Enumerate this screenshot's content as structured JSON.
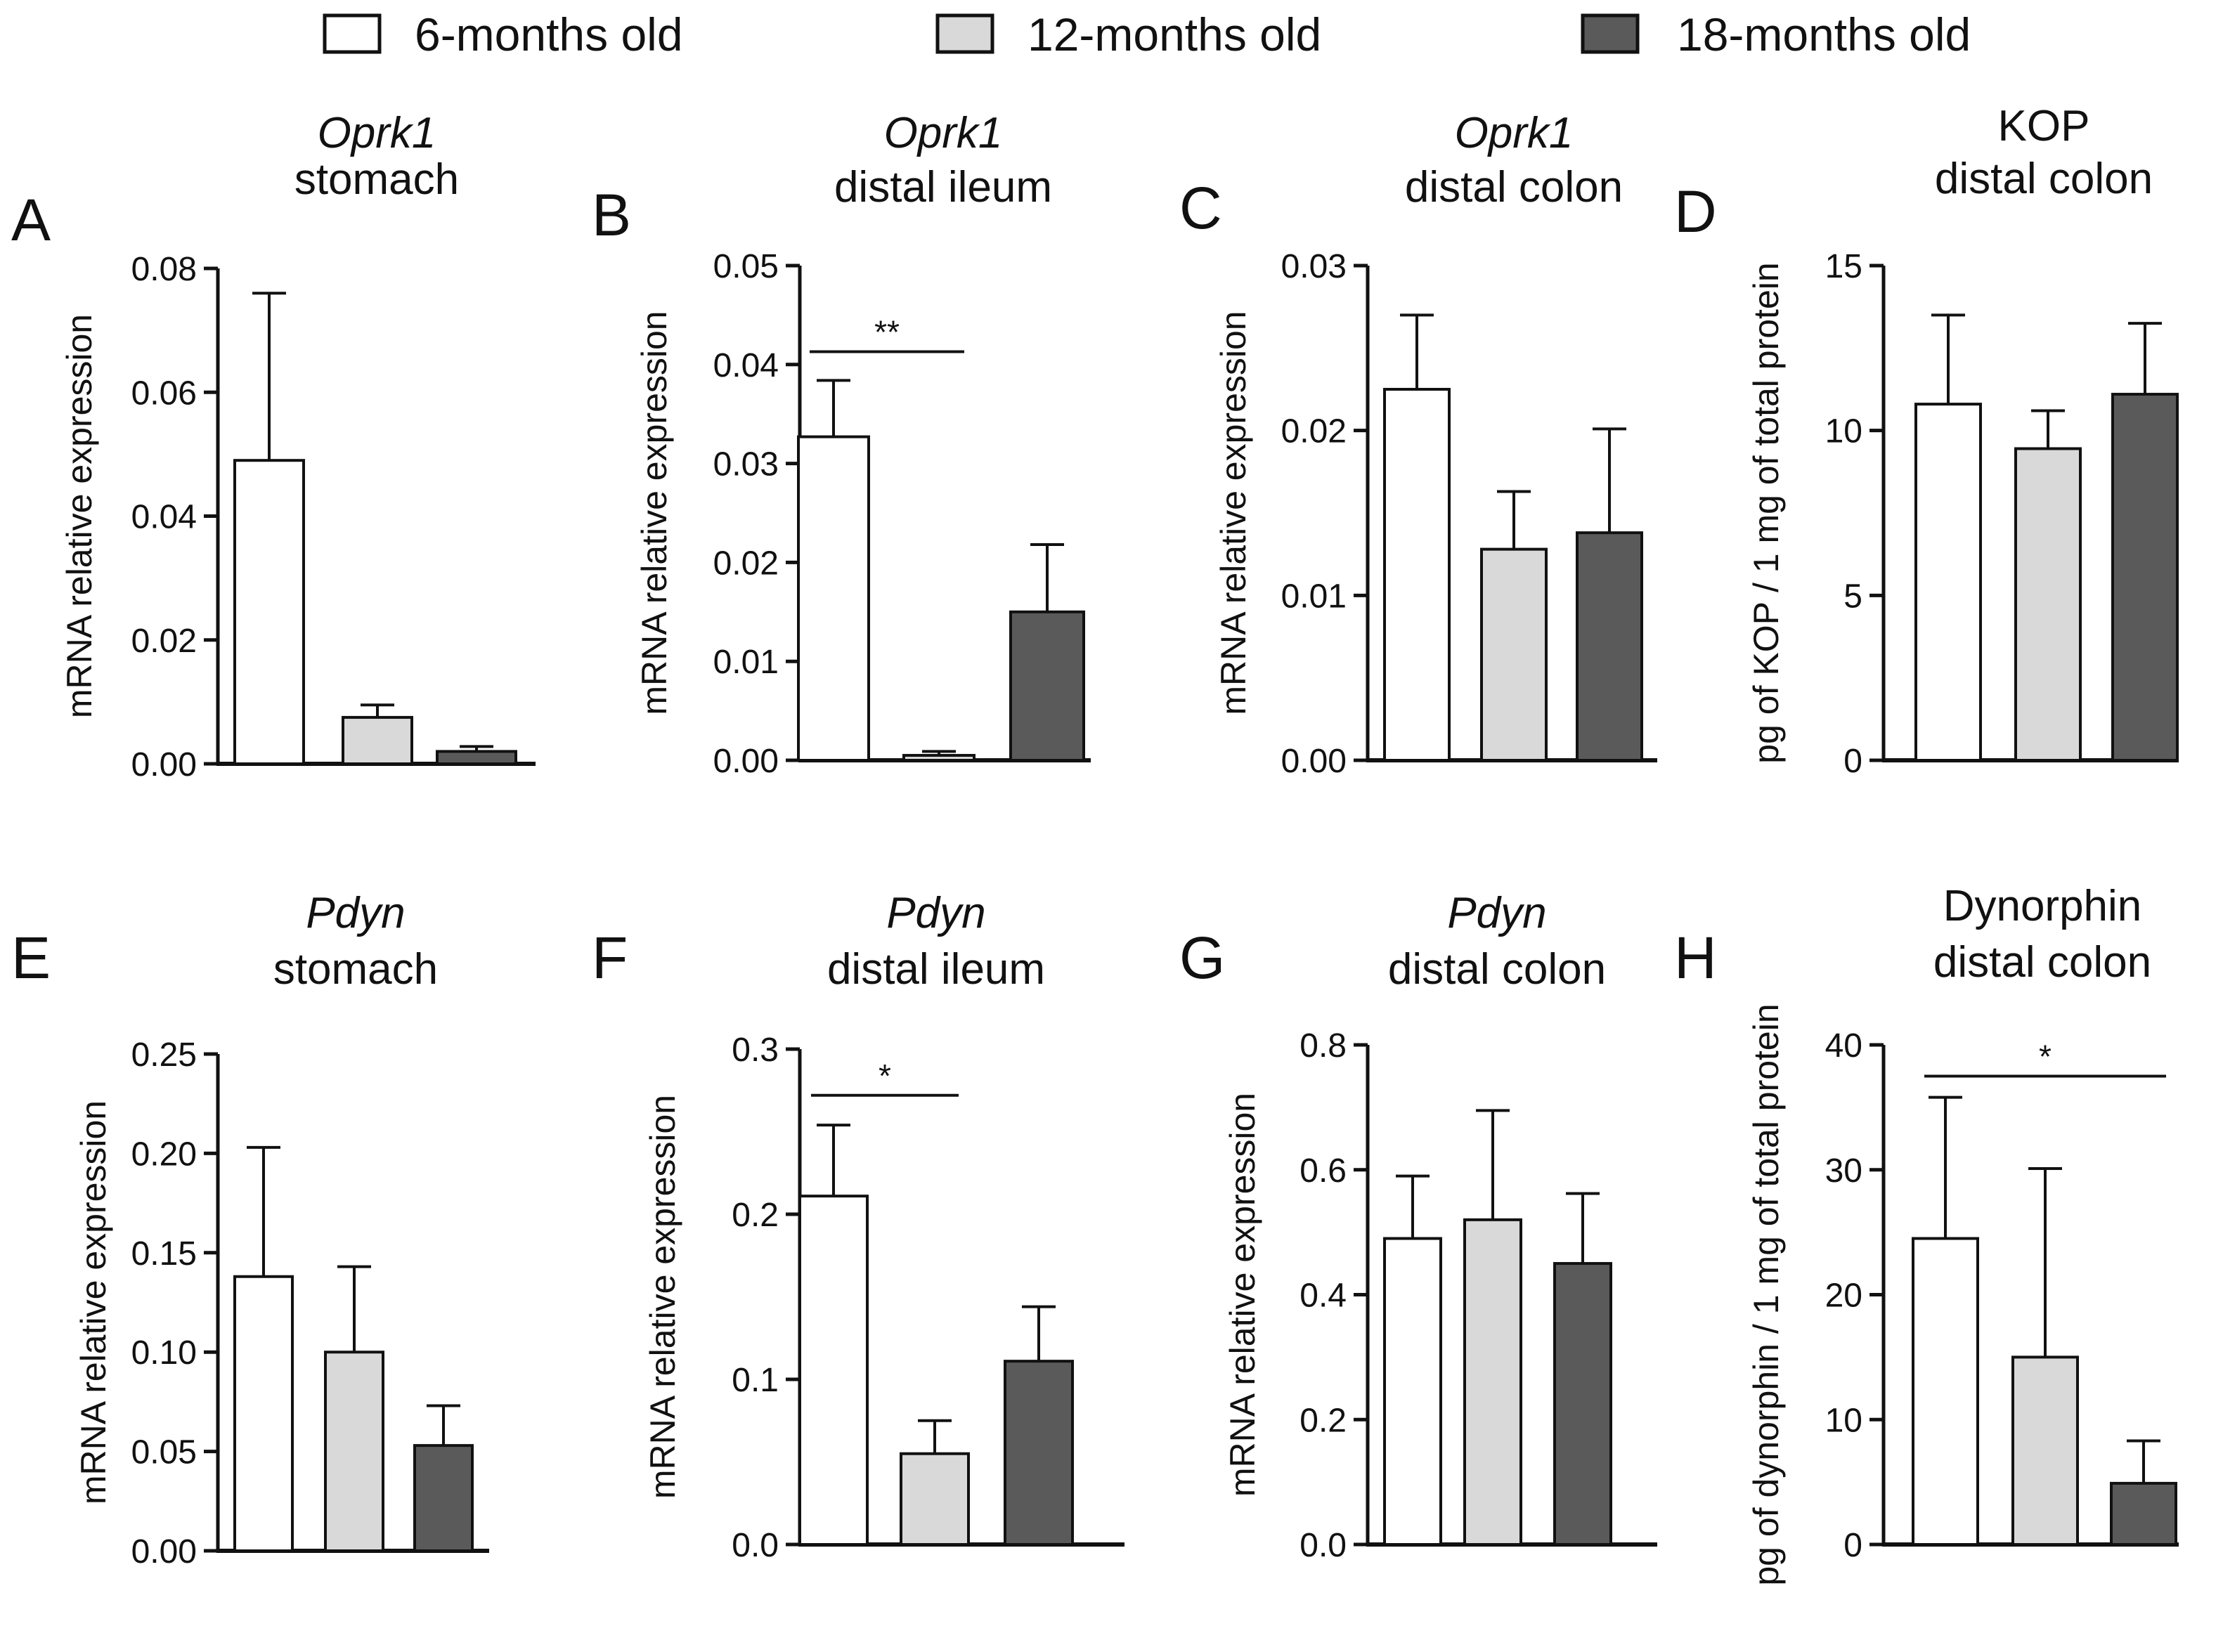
{
  "legend": {
    "items": [
      {
        "label": "6-months old",
        "color": "#ffffff"
      },
      {
        "label": "12-months old",
        "color": "#d9d9d9"
      },
      {
        "label": "18-months old",
        "color": "#5a5a5a"
      }
    ]
  },
  "colors": {
    "axis": "#111111",
    "outline": "#111111"
  },
  "chart_data": [
    {
      "panel": "A",
      "type": "bar",
      "title": [
        "Oprk1",
        "stomach"
      ],
      "title_italic_first_line": true,
      "ylabel": "mRNA relative expression",
      "ylim": [
        0,
        0.08
      ],
      "yticks": [
        "0.00",
        "0.02",
        "0.04",
        "0.06",
        "0.08"
      ],
      "categories": [
        "6-months old",
        "12-months old",
        "18-months old"
      ],
      "values": [
        0.049,
        0.0075,
        0.002
      ],
      "errors": [
        0.027,
        0.002,
        0.0008
      ],
      "significance": []
    },
    {
      "panel": "B",
      "type": "bar",
      "title": [
        "Oprk1",
        "distal ileum"
      ],
      "title_italic_first_line": true,
      "ylabel": "mRNA relative expression",
      "ylim": [
        0,
        0.05
      ],
      "yticks": [
        "0.00",
        "0.01",
        "0.02",
        "0.03",
        "0.04",
        "0.05"
      ],
      "categories": [
        "6-months old",
        "12-months old",
        "18-months old"
      ],
      "values": [
        0.0327,
        0.0005,
        0.015
      ],
      "errors": [
        0.0057,
        0.0004,
        0.0068
      ],
      "significance": [
        {
          "from": 0,
          "to": 1,
          "label": "**",
          "y": 0.0413
        }
      ]
    },
    {
      "panel": "C",
      "type": "bar",
      "title": [
        "Oprk1",
        "distal colon"
      ],
      "title_italic_first_line": true,
      "ylabel": "mRNA relative expression",
      "ylim": [
        0,
        0.03
      ],
      "yticks": [
        "0.00",
        "0.01",
        "0.02",
        "0.03"
      ],
      "categories": [
        "6-months old",
        "12-months old",
        "18-months old"
      ],
      "values": [
        0.0225,
        0.0128,
        0.0138
      ],
      "errors": [
        0.0045,
        0.0035,
        0.0063
      ],
      "significance": []
    },
    {
      "panel": "D",
      "type": "bar",
      "title": [
        "KOP",
        "distal colon"
      ],
      "title_italic_first_line": false,
      "ylabel": "pg of KOP / 1 mg of total protein",
      "ylim": [
        0,
        15
      ],
      "yticks": [
        "0",
        "5",
        "10",
        "15"
      ],
      "categories": [
        "6-months old",
        "12-months old",
        "18-months old"
      ],
      "values": [
        10.8,
        9.45,
        11.1
      ],
      "errors": [
        2.7,
        1.15,
        2.15
      ],
      "significance": []
    },
    {
      "panel": "E",
      "type": "bar",
      "title": [
        "Pdyn",
        "stomach"
      ],
      "title_italic_first_line": true,
      "ylabel": "mRNA relative expression",
      "ylim": [
        0,
        0.25
      ],
      "yticks": [
        "0.00",
        "0.05",
        "0.10",
        "0.15",
        "0.20",
        "0.25"
      ],
      "categories": [
        "6-months old",
        "12-months old",
        "18-months old"
      ],
      "values": [
        0.138,
        0.1,
        0.053
      ],
      "errors": [
        0.065,
        0.043,
        0.02
      ],
      "significance": []
    },
    {
      "panel": "F",
      "type": "bar",
      "title": [
        "Pdyn",
        "distal ileum"
      ],
      "title_italic_first_line": true,
      "ylabel": "mRNA relative expression",
      "ylim": [
        0,
        0.3
      ],
      "yticks": [
        "0.0",
        "0.1",
        "0.2",
        "0.3"
      ],
      "categories": [
        "6-months old",
        "12-months old",
        "18-months old"
      ],
      "values": [
        0.211,
        0.055,
        0.111
      ],
      "errors": [
        0.043,
        0.02,
        0.033
      ],
      "significance": [
        {
          "from": 0,
          "to": 1,
          "label": "*",
          "y": 0.272
        }
      ]
    },
    {
      "panel": "G",
      "type": "bar",
      "title": [
        "Pdyn",
        "distal colon"
      ],
      "title_italic_first_line": true,
      "ylabel": "mRNA relative expression",
      "ylim": [
        0,
        0.8
      ],
      "yticks": [
        "0.0",
        "0.2",
        "0.4",
        "0.6",
        "0.8"
      ],
      "categories": [
        "6-months old",
        "12-months old",
        "18-months old"
      ],
      "values": [
        0.49,
        0.52,
        0.45
      ],
      "errors": [
        0.1,
        0.175,
        0.112
      ],
      "significance": []
    },
    {
      "panel": "H",
      "type": "bar",
      "title": [
        "Dynorphin",
        "distal colon"
      ],
      "title_italic_first_line": false,
      "ylabel": "pg of dynorphin / 1 mg of total protein",
      "ylim": [
        0,
        40
      ],
      "yticks": [
        "0",
        "10",
        "20",
        "30",
        "40"
      ],
      "categories": [
        "6-months old",
        "12-months old",
        "18-months old"
      ],
      "values": [
        24.5,
        15.0,
        4.9
      ],
      "errors": [
        11.3,
        15.1,
        3.4
      ],
      "significance": [
        {
          "from": 0,
          "to": 2,
          "label": "*",
          "y": 37.5
        }
      ]
    }
  ]
}
